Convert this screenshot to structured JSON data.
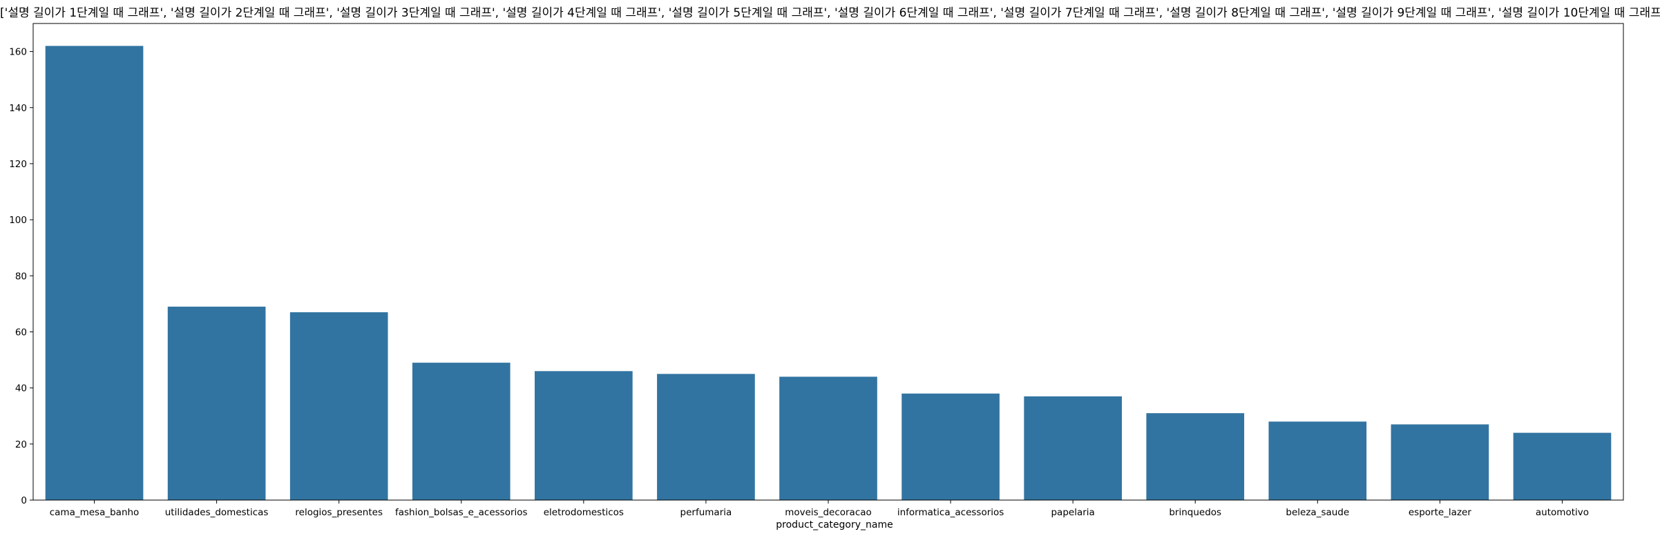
{
  "chart_data": {
    "type": "bar",
    "title": "['설명 길이가 1단계일 때 그래프', '설명 길이가 2단계일 때 그래프', '설명 길이가 3단계일 때 그래프', '설명 길이가 4단계일 때 그래프', '설명 길이가 5단계일 때 그래프', '설명 길이가 6단계일 때 그래프', '설명 길이가 7단계일 때 그래프', '설명 길이가 8단계일 때 그래프', '설명 길이가 9단계일 때 그래프', '설명 길이가 10단계일 때 그래프']",
    "xlabel": "product_category_name",
    "ylabel": "",
    "categories": [
      "cama_mesa_banho",
      "utilidades_domesticas",
      "relogios_presentes",
      "fashion_bolsas_e_acessorios",
      "eletrodomesticos",
      "perfumaria",
      "moveis_decoracao",
      "informatica_acessorios",
      "papelaria",
      "brinquedos",
      "beleza_saude",
      "esporte_lazer",
      "automotivo"
    ],
    "values": [
      162,
      69,
      67,
      49,
      46,
      45,
      44,
      38,
      37,
      31,
      28,
      27,
      24
    ],
    "ylim": [
      0,
      170
    ],
    "yticks": [
      0,
      20,
      40,
      60,
      80,
      100,
      120,
      140,
      160
    ],
    "grid": false,
    "bar_color": "#3274a1"
  }
}
